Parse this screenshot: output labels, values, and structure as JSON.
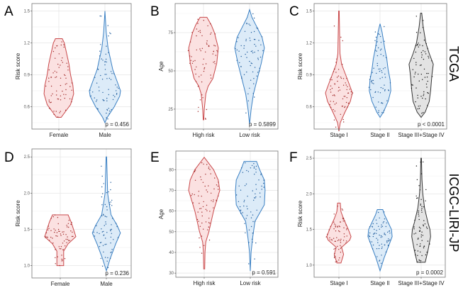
{
  "row_labels": [
    "TCGA",
    "ICGC-LIRI-JP"
  ],
  "chart_data": [
    {
      "panel": "A",
      "type": "violin",
      "ylabel": "Risk score",
      "ylim": [
        0.39,
        1.57
      ],
      "yticks": [
        0.6,
        0.9,
        1.2,
        1.5
      ],
      "ytick_labels": [
        "0.6",
        "0.9",
        "1.2",
        "1.5"
      ],
      "categories": [
        "Female",
        "Male"
      ],
      "p_value": "p = 0.456",
      "series": [
        {
          "name": "Female",
          "fill": "#fbe1e1",
          "stroke": "#c9494b",
          "point": "#a02a2a",
          "density": [
            [
              0.5,
              0.15
            ],
            [
              0.55,
              0.4
            ],
            [
              0.62,
              0.75
            ],
            [
              0.72,
              0.95
            ],
            [
              0.8,
              0.9
            ],
            [
              0.9,
              0.75
            ],
            [
              1.0,
              0.65
            ],
            [
              1.1,
              0.5
            ],
            [
              1.2,
              0.35
            ],
            [
              1.24,
              0.22
            ]
          ]
        },
        {
          "name": "Male",
          "fill": "#dcebf8",
          "stroke": "#3b80c3",
          "point": "#1f5c9c",
          "density": [
            [
              0.45,
              0
            ],
            [
              0.5,
              0.15
            ],
            [
              0.6,
              0.6
            ],
            [
              0.7,
              0.95
            ],
            [
              0.75,
              1
            ],
            [
              0.85,
              0.75
            ],
            [
              0.95,
              0.5
            ],
            [
              1.05,
              0.35
            ],
            [
              1.15,
              0.2
            ],
            [
              1.3,
              0.08
            ],
            [
              1.5,
              0
            ]
          ]
        }
      ]
    },
    {
      "panel": "B",
      "type": "violin",
      "ylabel": "Age",
      "ylim": [
        12,
        94
      ],
      "yticks": [
        25,
        50,
        75
      ],
      "ytick_labels": [
        "25",
        "50",
        "75"
      ],
      "categories": [
        "High risk",
        "Low risk"
      ],
      "p_value": "p = 0.5899",
      "series": [
        {
          "name": "High risk",
          "fill": "#fbe1e1",
          "stroke": "#c9494b",
          "point": "#a02a2a",
          "density": [
            [
              18,
              0.02
            ],
            [
              25,
              0.05
            ],
            [
              35,
              0.15
            ],
            [
              40,
              0.3
            ],
            [
              45,
              0.6
            ],
            [
              55,
              0.85
            ],
            [
              65,
              0.95
            ],
            [
              75,
              0.7
            ],
            [
              80,
              0.5
            ],
            [
              85,
              0.22
            ]
          ]
        },
        {
          "name": "Low risk",
          "fill": "#dcebf8",
          "stroke": "#3b80c3",
          "point": "#1f5c9c",
          "density": [
            [
              15,
              0
            ],
            [
              25,
              0.1
            ],
            [
              35,
              0.25
            ],
            [
              45,
              0.5
            ],
            [
              55,
              0.75
            ],
            [
              65,
              0.95
            ],
            [
              72,
              0.8
            ],
            [
              80,
              0.4
            ],
            [
              85,
              0.15
            ],
            [
              90,
              0
            ]
          ]
        }
      ]
    },
    {
      "panel": "C",
      "type": "violin",
      "ylabel": "Risk score",
      "ylim": [
        0.39,
        1.57
      ],
      "yticks": [
        0.6,
        0.9,
        1.2,
        1.5
      ],
      "ytick_labels": [
        "0.6",
        "0.9",
        "1.2",
        "1.5"
      ],
      "categories": [
        "Stage I",
        "Stage II",
        "Stage III+Stage IV"
      ],
      "p_value": "p < 0.0001",
      "series": [
        {
          "name": "Stage I",
          "fill": "#fbe1e1",
          "stroke": "#c9494b",
          "point": "#a02a2a",
          "density": [
            [
              0.37,
              0
            ],
            [
              0.45,
              0.1
            ],
            [
              0.55,
              0.45
            ],
            [
              0.65,
              0.85
            ],
            [
              0.73,
              1
            ],
            [
              0.8,
              0.8
            ],
            [
              0.9,
              0.5
            ],
            [
              1.0,
              0.2
            ],
            [
              1.1,
              0.08
            ],
            [
              1.5,
              0.02
            ]
          ]
        },
        {
          "name": "Stage II",
          "fill": "#dcebf8",
          "stroke": "#3b80c3",
          "point": "#1f5c9c",
          "density": [
            [
              0.5,
              0
            ],
            [
              0.55,
              0.25
            ],
            [
              0.65,
              0.6
            ],
            [
              0.75,
              0.8
            ],
            [
              0.85,
              0.75
            ],
            [
              0.95,
              0.6
            ],
            [
              1.05,
              0.5
            ],
            [
              1.15,
              0.35
            ],
            [
              1.3,
              0.15
            ],
            [
              1.38,
              0
            ]
          ]
        },
        {
          "name": "Stage III+Stage IV",
          "fill": "#e3e3e3",
          "stroke": "#333333",
          "point": "#111111",
          "density": [
            [
              0.5,
              0
            ],
            [
              0.55,
              0.3
            ],
            [
              0.65,
              0.6
            ],
            [
              0.75,
              0.7
            ],
            [
              0.9,
              0.8
            ],
            [
              1.0,
              0.9
            ],
            [
              1.1,
              0.6
            ],
            [
              1.2,
              0.35
            ],
            [
              1.35,
              0.15
            ],
            [
              1.48,
              0.04
            ]
          ]
        }
      ]
    },
    {
      "panel": "D",
      "type": "violin",
      "ylabel": "Risk score",
      "ylim": [
        0.83,
        2.61
      ],
      "yticks": [
        1.0,
        1.5,
        2.0,
        2.5
      ],
      "ytick_labels": [
        "1.0",
        "1.5",
        "2.0",
        "2.5"
      ],
      "categories": [
        "Female",
        "Male"
      ],
      "p_value": "p = 0.236",
      "series": [
        {
          "name": "Female",
          "fill": "#fbe1e1",
          "stroke": "#c9494b",
          "point": "#a02a2a",
          "density": [
            [
              1.0,
              0.22
            ],
            [
              1.1,
              0.22
            ],
            [
              1.2,
              0.22
            ],
            [
              1.3,
              0.5
            ],
            [
              1.4,
              1.0
            ],
            [
              1.5,
              0.85
            ],
            [
              1.6,
              0.7
            ],
            [
              1.7,
              0.5
            ]
          ]
        },
        {
          "name": "Male",
          "fill": "#dcebf8",
          "stroke": "#3b80c3",
          "point": "#1f5c9c",
          "density": [
            [
              0.93,
              0
            ],
            [
              1.1,
              0.25
            ],
            [
              1.3,
              0.6
            ],
            [
              1.45,
              0.9
            ],
            [
              1.55,
              0.7
            ],
            [
              1.7,
              0.3
            ],
            [
              1.9,
              0.15
            ],
            [
              2.0,
              0.08
            ],
            [
              2.5,
              0.02
            ]
          ]
        }
      ]
    },
    {
      "panel": "E",
      "type": "violin",
      "ylabel": "Age",
      "ylim": [
        28,
        89
      ],
      "yticks": [
        30,
        40,
        50,
        60,
        70,
        80
      ],
      "ytick_labels": [
        "30",
        "40",
        "50",
        "60",
        "70",
        "80"
      ],
      "categories": [
        "High risk",
        "Low risk"
      ],
      "p_value": "p = 0.591",
      "series": [
        {
          "name": "High risk",
          "fill": "#fbe1e1",
          "stroke": "#c9494b",
          "point": "#a02a2a",
          "density": [
            [
              32,
              0.03
            ],
            [
              40,
              0.05
            ],
            [
              45,
              0.1
            ],
            [
              50,
              0.3
            ],
            [
              60,
              0.6
            ],
            [
              70,
              1.0
            ],
            [
              75,
              0.9
            ],
            [
              80,
              0.6
            ],
            [
              86,
              0
            ]
          ]
        },
        {
          "name": "Low risk",
          "fill": "#dcebf8",
          "stroke": "#3b80c3",
          "point": "#1f5c9c",
          "density": [
            [
              31,
              0
            ],
            [
              40,
              0.05
            ],
            [
              47,
              0.15
            ],
            [
              55,
              0.3
            ],
            [
              63,
              0.9
            ],
            [
              70,
              0.95
            ],
            [
              75,
              0.9
            ],
            [
              80,
              0.6
            ],
            [
              84,
              0.4
            ]
          ]
        }
      ]
    },
    {
      "panel": "F",
      "type": "violin",
      "ylabel": "Risk score",
      "ylim": [
        0.83,
        2.61
      ],
      "yticks": [
        1.0,
        1.5,
        2.0,
        2.5
      ],
      "ytick_labels": [
        "1.0",
        "1.5",
        "2.0",
        "2.5"
      ],
      "categories": [
        "Stage I",
        "Stage II",
        "Stage III+Stage IV"
      ],
      "p_value": "p = 0.0002",
      "series": [
        {
          "name": "Stage I",
          "fill": "#fbe1e1",
          "stroke": "#c9494b",
          "point": "#a02a2a",
          "density": [
            [
              1.03,
              0.15
            ],
            [
              1.15,
              0.35
            ],
            [
              1.25,
              0.2
            ],
            [
              1.35,
              0.8
            ],
            [
              1.4,
              0.9
            ],
            [
              1.5,
              0.7
            ],
            [
              1.65,
              0.35
            ],
            [
              1.75,
              0.15
            ],
            [
              1.87,
              0.1
            ]
          ]
        },
        {
          "name": "Stage II",
          "fill": "#dcebf8",
          "stroke": "#3b80c3",
          "point": "#1f5c9c",
          "density": [
            [
              0.92,
              0
            ],
            [
              1.1,
              0.3
            ],
            [
              1.25,
              0.6
            ],
            [
              1.4,
              0.9
            ],
            [
              1.5,
              0.85
            ],
            [
              1.6,
              0.6
            ],
            [
              1.7,
              0.35
            ],
            [
              1.78,
              0.2
            ]
          ]
        },
        {
          "name": "Stage III+Stage IV",
          "fill": "#e3e3e3",
          "stroke": "#333333",
          "point": "#111111",
          "density": [
            [
              1.04,
              0.3
            ],
            [
              1.2,
              0.5
            ],
            [
              1.4,
              0.7
            ],
            [
              1.5,
              0.65
            ],
            [
              1.6,
              0.5
            ],
            [
              1.8,
              0.25
            ],
            [
              2.0,
              0.12
            ],
            [
              2.2,
              0.06
            ],
            [
              2.5,
              0.02
            ]
          ]
        }
      ]
    }
  ]
}
